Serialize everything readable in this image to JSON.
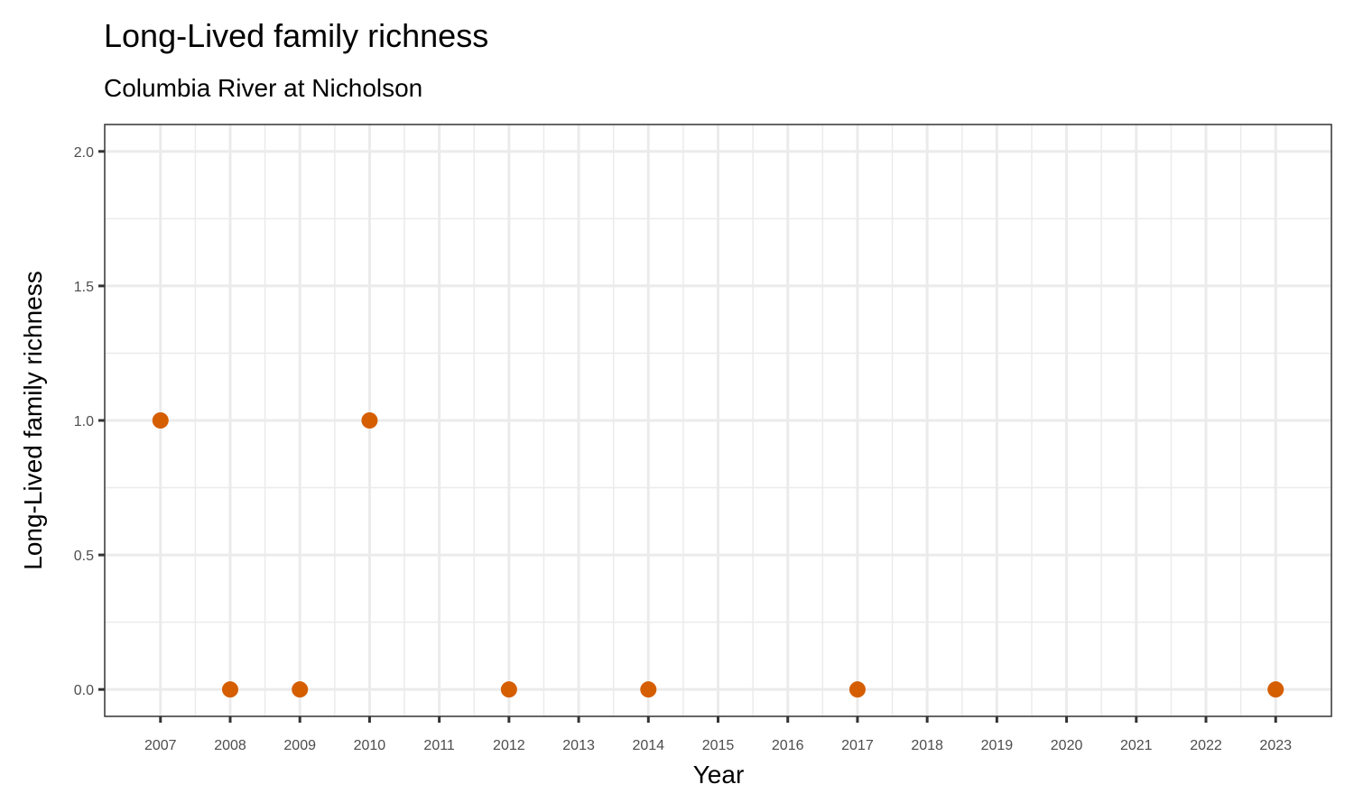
{
  "chart_data": {
    "type": "scatter",
    "title": "Long-Lived family richness",
    "subtitle": "Columbia River at Nicholson",
    "xlabel": "Year",
    "ylabel": "Long-Lived family richness",
    "x_ticks": [
      2007,
      2008,
      2009,
      2010,
      2011,
      2012,
      2013,
      2014,
      2015,
      2016,
      2017,
      2018,
      2019,
      2020,
      2021,
      2022,
      2023
    ],
    "y_ticks": [
      "0.0",
      "0.5",
      "1.0",
      "1.5",
      "2.0"
    ],
    "xlim": [
      2006.2,
      2023.8
    ],
    "ylim": [
      -0.1,
      2.1
    ],
    "grid": true,
    "point_color": "#D55E00",
    "x": [
      2007,
      2008,
      2009,
      2010,
      2012,
      2014,
      2017,
      2023
    ],
    "y": [
      1,
      0,
      0,
      1,
      0,
      0,
      0,
      0
    ]
  }
}
